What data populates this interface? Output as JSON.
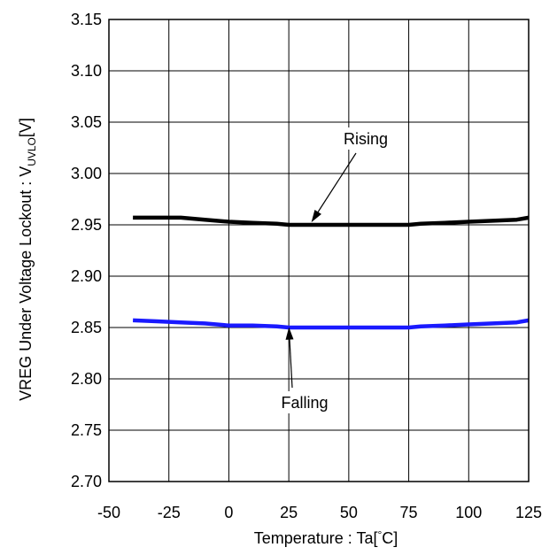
{
  "chart_data": {
    "type": "line",
    "x_axis": {
      "label_main": "Temperature : Ta[",
      "label_deg": "°",
      "label_end": "C]",
      "range": [
        -50,
        125
      ],
      "ticks": [
        -50,
        -25,
        0,
        25,
        50,
        75,
        100,
        125
      ],
      "tick_labels": [
        "-50",
        "-25",
        "0",
        "25",
        "50",
        "75",
        "100",
        "125"
      ]
    },
    "y_axis": {
      "label_main": "VREG Under Voltage Lockout : V",
      "label_sub": "UVLO",
      "label_end": "[V]",
      "range": [
        2.7,
        3.15
      ],
      "ticks": [
        2.7,
        2.75,
        2.8,
        2.85,
        2.9,
        2.95,
        3.0,
        3.05,
        3.1,
        3.15
      ],
      "tick_labels": [
        "2.70",
        "2.75",
        "2.80",
        "2.85",
        "2.90",
        "2.95",
        "3.00",
        "3.05",
        "3.10",
        "3.15"
      ]
    },
    "grid": true,
    "series": [
      {
        "name": "Rising",
        "color": "#000000",
        "x": [
          -40,
          -30,
          -20,
          -10,
          0,
          10,
          20,
          25,
          30,
          40,
          50,
          60,
          70,
          75,
          80,
          90,
          100,
          110,
          120,
          125
        ],
        "y": [
          2.957,
          2.957,
          2.957,
          2.955,
          2.953,
          2.952,
          2.951,
          2.95,
          2.95,
          2.95,
          2.95,
          2.95,
          2.95,
          2.95,
          2.951,
          2.952,
          2.953,
          2.954,
          2.955,
          2.957
        ]
      },
      {
        "name": "Falling",
        "color": "#1a1aff",
        "x": [
          -40,
          -30,
          -20,
          -10,
          0,
          10,
          20,
          25,
          30,
          40,
          50,
          60,
          70,
          75,
          80,
          90,
          100,
          110,
          120,
          125
        ],
        "y": [
          2.857,
          2.856,
          2.855,
          2.854,
          2.852,
          2.852,
          2.851,
          2.85,
          2.85,
          2.85,
          2.85,
          2.85,
          2.85,
          2.85,
          2.851,
          2.852,
          2.853,
          2.854,
          2.855,
          2.857
        ]
      }
    ],
    "annotations": [
      {
        "text": "Rising",
        "series": 0,
        "point_x": 34,
        "point_y": 2.951
      },
      {
        "text": "Falling",
        "series": 1,
        "point_x": 25,
        "point_y": 2.852
      }
    ]
  }
}
